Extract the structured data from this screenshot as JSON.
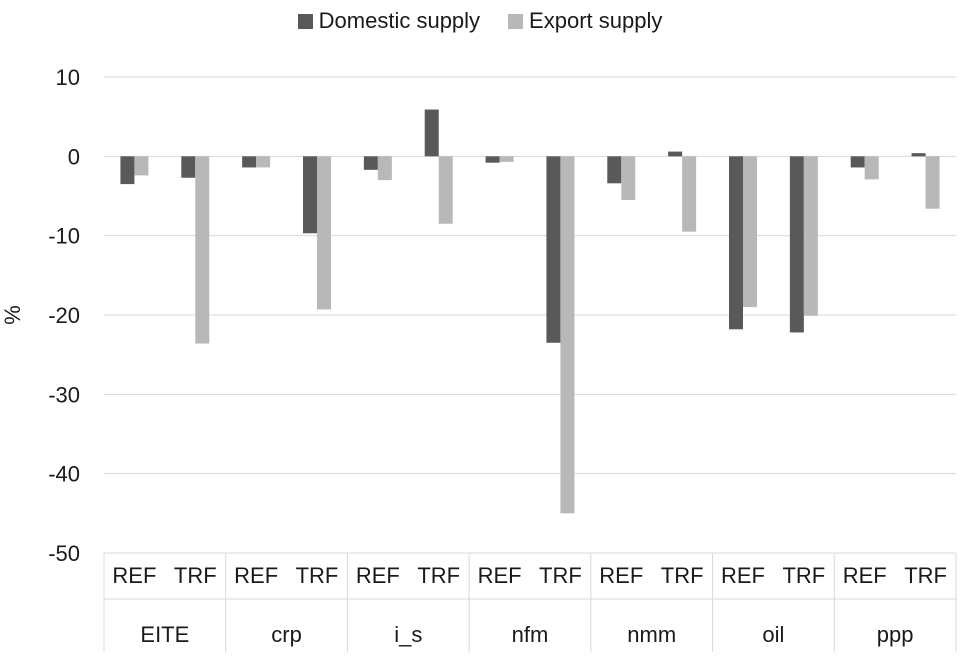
{
  "chart_data": {
    "type": "bar",
    "ylabel": "%",
    "ylim": [
      -50,
      10
    ],
    "yticks": [
      10,
      0,
      -10,
      -20,
      -30,
      -40,
      -50
    ],
    "grid": true,
    "legend_position": "top-center",
    "groups": [
      "EITE",
      "crp",
      "i_s",
      "nfm",
      "nmm",
      "oil",
      "ppp"
    ],
    "scenarios": [
      "REF",
      "TRF"
    ],
    "series": [
      {
        "name": "Domestic supply",
        "color": "#595959",
        "values": [
          -3.5,
          -2.7,
          -1.4,
          -9.7,
          -1.7,
          5.9,
          -0.8,
          -23.5,
          -3.4,
          0.6,
          -21.8,
          -22.2,
          -1.4,
          0.4
        ]
      },
      {
        "name": "Export supply",
        "color": "#b8b8b8",
        "values": [
          -2.4,
          -23.6,
          -1.4,
          -19.3,
          -3.0,
          -8.5,
          -0.7,
          -45.0,
          -5.5,
          -9.5,
          -19.0,
          -20.1,
          -2.9,
          -6.6
        ]
      }
    ]
  }
}
